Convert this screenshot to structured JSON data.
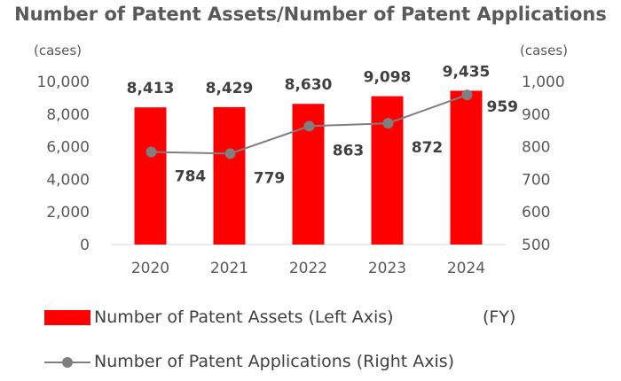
{
  "colors": {
    "bar": "#ff0000",
    "line": "#7f7f7f",
    "marker": "#7f7f7f",
    "axis_text": "#595959",
    "data_label": "#404040",
    "baseline": "#d9d9d9"
  },
  "chart_data": {
    "type": "bar",
    "title": "Number of Patent Assets/Number of Patent Applications",
    "left_unit": "(cases)",
    "right_unit": "(cases)",
    "x_unit_label": "(FY)",
    "categories": [
      "2020",
      "2021",
      "2022",
      "2023",
      "2024"
    ],
    "left_axis": {
      "ylim": [
        0,
        10000
      ],
      "ticks": [
        "0",
        "2,000",
        "4,000",
        "6,000",
        "8,000",
        "10,000"
      ],
      "tick_values": [
        0,
        2000,
        4000,
        6000,
        8000,
        10000
      ]
    },
    "right_axis": {
      "ylim": [
        500,
        1000
      ],
      "ticks": [
        "500",
        "600",
        "700",
        "800",
        "900",
        "1,000"
      ],
      "tick_values": [
        500,
        600,
        700,
        800,
        900,
        1000
      ]
    },
    "series": [
      {
        "name": "Number of Patent Assets (Left Axis)",
        "type": "bar",
        "axis": "left",
        "values": [
          8413,
          8429,
          8630,
          9098,
          9435
        ],
        "labels": [
          "8,413",
          "8,429",
          "8,630",
          "9,098",
          "9,435"
        ]
      },
      {
        "name": "Number of Patent Applications (Right Axis)",
        "type": "line",
        "axis": "right",
        "values": [
          784,
          779,
          863,
          872,
          959
        ],
        "labels": [
          "784",
          "779",
          "863",
          "872",
          "959"
        ]
      }
    ],
    "legend_position": "bottom-left",
    "grid": false
  }
}
